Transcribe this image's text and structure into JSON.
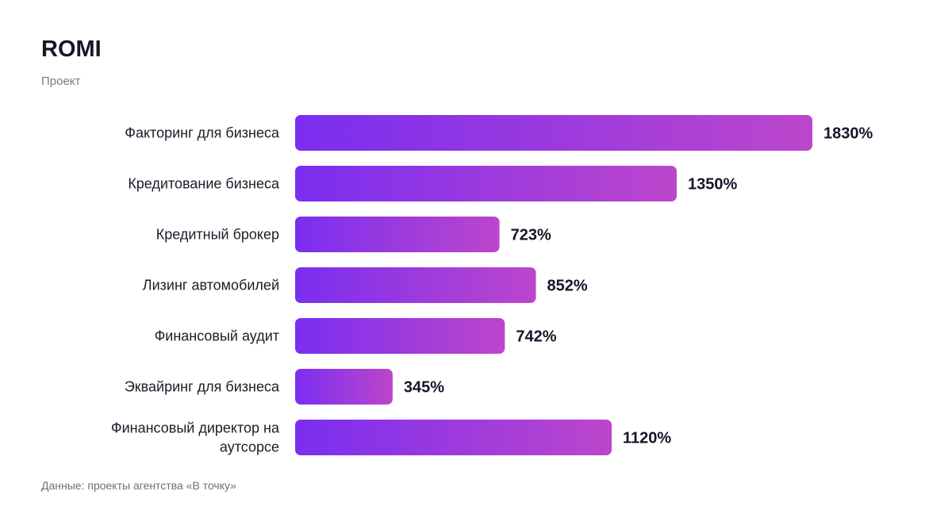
{
  "title": "ROMI",
  "subtitle": "Проект",
  "source": "Данные: проекты агентства «В точку»",
  "colors": {
    "bar_start": "#7A2EF0",
    "bar_end": "#BC46CC",
    "text": "#16162a"
  },
  "chart_data": {
    "type": "bar",
    "orientation": "horizontal",
    "categories": [
      "Факторинг для бизнеса",
      "Кредитование бизнеса",
      "Кредитный брокер",
      "Лизинг автомобилей",
      "Финансовый аудит",
      "Эквайринг для бизнеса",
      "Финансовый директор на аутсорсе"
    ],
    "values": [
      1830,
      1350,
      723,
      852,
      742,
      345,
      1120
    ],
    "value_labels": [
      "1830%",
      "1350%",
      "723%",
      "852%",
      "742%",
      "345%",
      "1120%"
    ],
    "xlim": [
      0,
      1830
    ],
    "grid": false,
    "legend": "none"
  }
}
